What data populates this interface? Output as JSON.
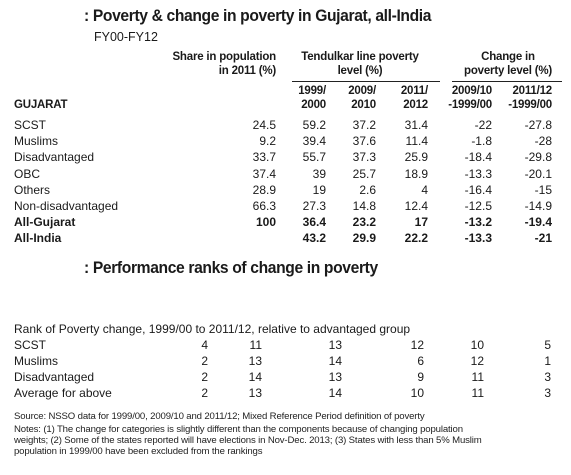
{
  "table1": {
    "title": ": Poverty & change in poverty in Gujarat, all-India",
    "subtitle": "FY00-FY12",
    "headers": {
      "share": [
        "Share in population",
        "in 2011 (%)"
      ],
      "tendulkar": [
        "Tendulkar line poverty",
        "level (%)"
      ],
      "change": [
        "Change in",
        "poverty level (%)"
      ],
      "y1999": [
        "1999/",
        "2000"
      ],
      "y2009": [
        "2009/",
        "2010"
      ],
      "y2011": [
        "2011/",
        "2012"
      ],
      "c0910": [
        "2009/10",
        "-1999/00"
      ],
      "c1112": [
        "2011/12",
        "-1999/00"
      ],
      "section": "GUJARAT"
    },
    "rows": [
      {
        "label": "SCST",
        "share": "24.5",
        "p1999": "59.2",
        "p2009": "37.2",
        "p2011": "31.4",
        "c0910": "-22",
        "c1112": "-27.8",
        "bold": false
      },
      {
        "label": "Muslims",
        "share": "9.2",
        "p1999": "39.4",
        "p2009": "37.6",
        "p2011": "11.4",
        "c0910": "-1.8",
        "c1112": "-28",
        "bold": false
      },
      {
        "label": "Disadvantaged",
        "share": "33.7",
        "p1999": "55.7",
        "p2009": "37.3",
        "p2011": "25.9",
        "c0910": "-18.4",
        "c1112": "-29.8",
        "bold": false
      },
      {
        "label": "OBC",
        "share": "37.4",
        "p1999": "39",
        "p2009": "25.7",
        "p2011": "18.9",
        "c0910": "-13.3",
        "c1112": "-20.1",
        "bold": false
      },
      {
        "label": "Others",
        "share": "28.9",
        "p1999": "19",
        "p2009": "2.6",
        "p2011": "4",
        "c0910": "-16.4",
        "c1112": "-15",
        "bold": false
      },
      {
        "label": "Non-disadvantaged",
        "share": "66.3",
        "p1999": "27.3",
        "p2009": "14.8",
        "p2011": "12.4",
        "c0910": "-12.5",
        "c1112": "-14.9",
        "bold": false
      },
      {
        "label": "All-Gujarat",
        "share": "100",
        "p1999": "36.4",
        "p2009": "23.2",
        "p2011": "17",
        "c0910": "-13.2",
        "c1112": "-19.4",
        "bold": true
      },
      {
        "label": "All-India",
        "share": "",
        "p1999": "43.2",
        "p2009": "29.9",
        "p2011": "22.2",
        "c0910": "-13.3",
        "c1112": "-21",
        "bold": true
      }
    ]
  },
  "table2": {
    "title": ": Performance ranks of change in poverty",
    "caption": "Rank of Poverty change, 1999/00 to 2011/12, relative to advantaged group",
    "rows": [
      {
        "label": "SCST",
        "v": [
          "4",
          "11",
          "13",
          "12",
          "10",
          "5"
        ]
      },
      {
        "label": "Muslims",
        "v": [
          "2",
          "13",
          "14",
          "6",
          "12",
          "1"
        ]
      },
      {
        "label": "Disadvantaged",
        "v": [
          "2",
          "14",
          "13",
          "9",
          "11",
          "3"
        ]
      },
      {
        "label": "Average for above",
        "v": [
          "2",
          "13",
          "14",
          "10",
          "11",
          "3"
        ]
      }
    ]
  },
  "source": "Source: NSSO data for 1999/00, 2009/10 and 2011/12; Mixed Reference Period definition of poverty",
  "notes": [
    "Notes: (1) The change for categories is slightly different than the components because of changing population",
    "weights; (2) Some of the states reported will have elections in Nov-Dec. 2013; (3) States with less than 5% Muslim",
    "population in 1999/00 have been excluded from the rankings"
  ]
}
